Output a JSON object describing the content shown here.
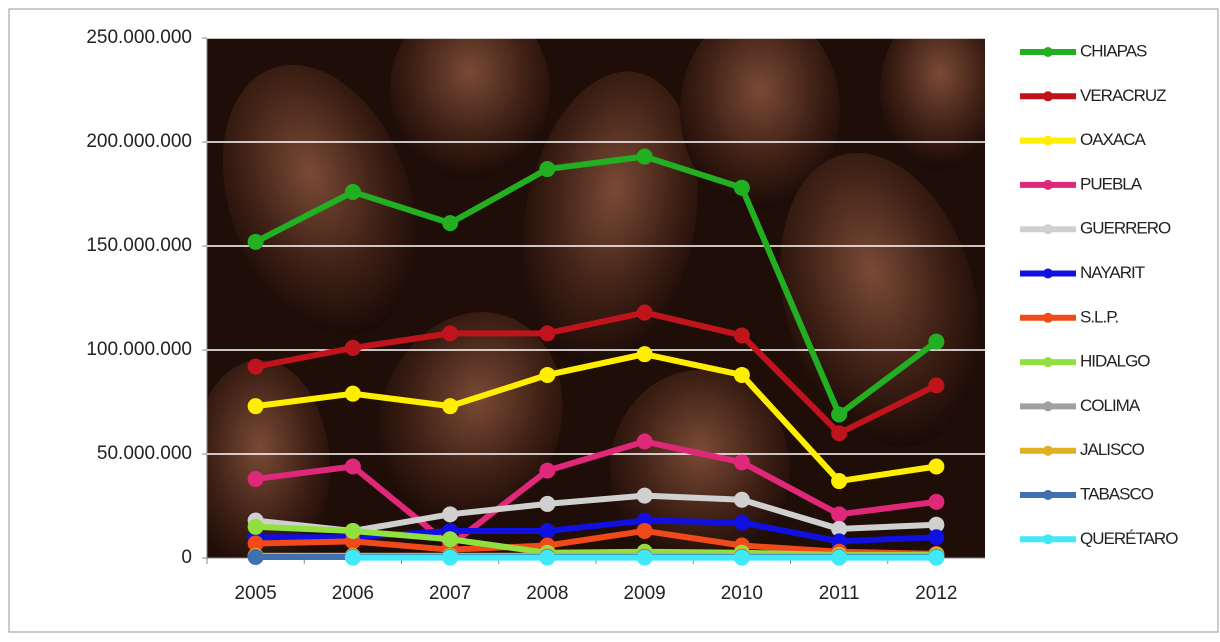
{
  "chart_data": {
    "type": "line",
    "categories": [
      "2005",
      "2006",
      "2007",
      "2008",
      "2009",
      "2010",
      "2011",
      "2012"
    ],
    "series": [
      {
        "name": "CHIAPAS",
        "color": "#22b022",
        "values": [
          152000000,
          176000000,
          161000000,
          187000000,
          193000000,
          178000000,
          69000000,
          104000000
        ]
      },
      {
        "name": "VERACRUZ",
        "color": "#c0141c",
        "values": [
          92000000,
          101000000,
          108000000,
          108000000,
          118000000,
          107000000,
          60000000,
          83000000
        ]
      },
      {
        "name": "OAXACA",
        "color": "#ffee00",
        "values": [
          73000000,
          79000000,
          73000000,
          88000000,
          98000000,
          88000000,
          37000000,
          44000000
        ]
      },
      {
        "name": "PUEBLA",
        "color": "#e0287a",
        "values": [
          38000000,
          44000000,
          6000000,
          42000000,
          56000000,
          46000000,
          21000000,
          27000000
        ]
      },
      {
        "name": "GUERRERO",
        "color": "#d0d0d0",
        "values": [
          18000000,
          13000000,
          21000000,
          26000000,
          30000000,
          28000000,
          14000000,
          16000000
        ]
      },
      {
        "name": "NAYARIT",
        "color": "#1010e0",
        "values": [
          10000000,
          10000000,
          13000000,
          13000000,
          18000000,
          17000000,
          8000000,
          10000000
        ]
      },
      {
        "name": "S.L.P.",
        "color": "#f04a1a",
        "values": [
          7000000,
          8000000,
          4000000,
          6000000,
          13000000,
          6000000,
          3000000,
          2000000
        ]
      },
      {
        "name": "HIDALGO",
        "color": "#90e040",
        "values": [
          15000000,
          13000000,
          9000000,
          2500000,
          3000000,
          2500000,
          1500000,
          1500000
        ]
      },
      {
        "name": "COLIMA",
        "color": "#a0a0a0",
        "values": [
          1000000,
          1000000,
          1000000,
          1000000,
          1000000,
          1000000,
          1000000,
          1000000
        ]
      },
      {
        "name": "JALISCO",
        "color": "#e0b020",
        "values": [
          1000000,
          1000000,
          1000000,
          1000000,
          1000000,
          1000000,
          1000000,
          1000000
        ]
      },
      {
        "name": "TABASCO",
        "color": "#4070b0",
        "values": [
          500000,
          500000,
          500000,
          500000,
          500000,
          500000,
          500000,
          500000
        ]
      },
      {
        "name": "QUERÉTARO",
        "color": "#40e8f8",
        "values": [
          null,
          200000,
          200000,
          200000,
          200000,
          200000,
          200000,
          200000
        ]
      }
    ],
    "ylim": [
      0,
      250000000
    ],
    "yticks": [
      {
        "value": 0,
        "label": "0"
      },
      {
        "value": 50000000,
        "label": "50.000.000"
      },
      {
        "value": 100000000,
        "label": "100.000.000"
      },
      {
        "value": 150000000,
        "label": "150.000.000"
      },
      {
        "value": 200000000,
        "label": "200.000.000"
      },
      {
        "value": 250000000,
        "label": "250.000.000"
      }
    ],
    "grid": true,
    "legend": "right"
  }
}
